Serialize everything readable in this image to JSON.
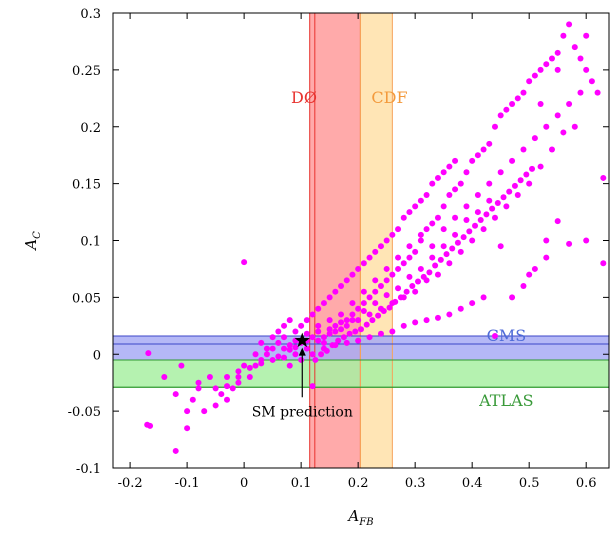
{
  "chart_data": {
    "type": "scatter",
    "xlabel_main": "A",
    "xlabel_sub": "FB",
    "ylabel_main": "A",
    "ylabel_sub": "C",
    "xlim": [
      -0.23,
      0.64
    ],
    "ylim": [
      -0.1,
      0.3
    ],
    "x_ticks": [
      -0.2,
      -0.1,
      0,
      0.1,
      0.2,
      0.3,
      0.4,
      0.5,
      0.6
    ],
    "x_tick_labels": [
      "-0.2",
      "-0.1",
      "0",
      "0.1",
      "0.2",
      "0.3",
      "0.4",
      "0.5",
      "0.6"
    ],
    "y_ticks": [
      -0.1,
      -0.05,
      0,
      0.05,
      0.1,
      0.15,
      0.2,
      0.25,
      0.3
    ],
    "y_tick_labels": [
      "-0.1",
      "-0.05",
      "0",
      "0.05",
      "0.1",
      "0.15",
      "0.2",
      "0.25",
      "0.3"
    ],
    "grid": false,
    "bands": [
      {
        "name": "DØ",
        "orientation": "vertical",
        "range": [
          0.115,
          0.204
        ],
        "center": 0.124,
        "fill": "#ff9b9b",
        "edge": "#e8332f",
        "label_color": "#e8332f",
        "label_at": [
          0.105,
          0.226
        ]
      },
      {
        "name": "CDF",
        "orientation": "vertical",
        "range": [
          0.204,
          0.26
        ],
        "center": 0.204,
        "fill": "#ffe0a8",
        "edge": "#f6a35a",
        "label_color": "#f39a3c",
        "label_at": [
          0.255,
          0.226
        ]
      },
      {
        "name": "CMS",
        "orientation": "horizontal",
        "range": [
          -0.005,
          0.016
        ],
        "center": 0.009,
        "fill": "#a8abf5",
        "edge": "#3c46c8",
        "label_color": "#4f6bd8",
        "label_at": [
          0.46,
          0.017
        ]
      },
      {
        "name": "ATLAS",
        "orientation": "horizontal",
        "range": [
          -0.029,
          -0.005
        ],
        "center": -0.029,
        "fill": "#a8f0a2",
        "edge": "#2f9a2f",
        "label_color": "#3a9a3a",
        "label_at": [
          0.46,
          -0.04
        ]
      }
    ],
    "sm_prediction": {
      "label": "SM prediction",
      "x": 0.102,
      "y": 0.012,
      "label_at": [
        0.102,
        -0.051
      ]
    },
    "series": [
      {
        "marker": "circle",
        "color": "#ff00ff",
        "points": [
          [
            -0.17,
            -0.062
          ],
          [
            -0.165,
            -0.063
          ],
          [
            -0.168,
            0.001
          ],
          [
            -0.14,
            -0.02
          ],
          [
            -0.11,
            -0.01
          ],
          [
            -0.12,
            -0.035
          ],
          [
            -0.1,
            -0.05
          ],
          [
            -0.12,
            -0.085
          ],
          [
            -0.1,
            -0.065
          ],
          [
            -0.09,
            -0.04
          ],
          [
            -0.08,
            -0.03
          ],
          [
            -0.07,
            -0.05
          ],
          [
            -0.06,
            -0.02
          ],
          [
            -0.05,
            -0.03
          ],
          [
            -0.04,
            -0.035
          ],
          [
            -0.03,
            -0.04
          ],
          [
            -0.02,
            -0.03
          ],
          [
            -0.05,
            -0.045
          ],
          [
            0.0,
            0.081
          ],
          [
            -0.01,
            -0.02
          ],
          [
            -0.08,
            -0.025
          ],
          [
            -0.03,
            -0.02
          ],
          [
            -0.01,
            -0.015
          ],
          [
            0.0,
            -0.01
          ],
          [
            0.01,
            -0.02
          ],
          [
            0.02,
            -0.01
          ],
          [
            0.03,
            -0.005
          ],
          [
            0.04,
            0.0
          ],
          [
            0.05,
            0.005
          ],
          [
            0.06,
            0.01
          ],
          [
            0.07,
            0.015
          ],
          [
            0.08,
            0.008
          ],
          [
            0.09,
            0.006
          ],
          [
            0.1,
            0.01
          ],
          [
            0.11,
            0.012
          ],
          [
            0.12,
            0.015
          ],
          [
            0.13,
            0.02
          ],
          [
            0.14,
            0.01
          ],
          [
            0.15,
            0.022
          ],
          [
            0.16,
            0.025
          ],
          [
            0.17,
            0.028
          ],
          [
            0.18,
            0.03
          ],
          [
            0.19,
            0.035
          ],
          [
            0.2,
            0.04
          ],
          [
            0.21,
            0.045
          ],
          [
            0.22,
            0.05
          ],
          [
            0.23,
            0.055
          ],
          [
            0.24,
            0.06
          ],
          [
            0.25,
            0.065
          ],
          [
            0.26,
            0.07
          ],
          [
            0.27,
            0.075
          ],
          [
            0.28,
            0.08
          ],
          [
            0.29,
            0.085
          ],
          [
            0.3,
            0.09
          ],
          [
            0.31,
            0.1
          ],
          [
            0.32,
            0.11
          ],
          [
            0.33,
            0.115
          ],
          [
            0.34,
            0.12
          ],
          [
            0.35,
            0.13
          ],
          [
            0.36,
            0.14
          ],
          [
            0.37,
            0.145
          ],
          [
            0.38,
            0.15
          ],
          [
            0.39,
            0.16
          ],
          [
            0.4,
            0.17
          ],
          [
            0.41,
            0.175
          ],
          [
            0.42,
            0.18
          ],
          [
            0.43,
            0.185
          ],
          [
            0.44,
            0.2
          ],
          [
            0.45,
            0.21
          ],
          [
            0.46,
            0.215
          ],
          [
            0.47,
            0.22
          ],
          [
            0.48,
            0.225
          ],
          [
            0.49,
            0.23
          ],
          [
            0.5,
            0.24
          ],
          [
            0.51,
            0.245
          ],
          [
            0.52,
            0.25
          ],
          [
            0.53,
            0.255
          ],
          [
            0.54,
            0.26
          ],
          [
            0.55,
            0.265
          ],
          [
            0.56,
            0.28
          ],
          [
            0.57,
            0.29
          ],
          [
            0.58,
            0.27
          ],
          [
            0.59,
            0.26
          ],
          [
            0.6,
            0.25
          ],
          [
            0.61,
            0.24
          ],
          [
            0.62,
            0.23
          ],
          [
            0.63,
            0.155
          ],
          [
            0.63,
            0.08
          ],
          [
            0.6,
            0.1
          ],
          [
            0.58,
            0.2
          ],
          [
            0.56,
            0.195
          ],
          [
            0.54,
            0.18
          ],
          [
            0.52,
            0.165
          ],
          [
            0.5,
            0.15
          ],
          [
            0.48,
            0.14
          ],
          [
            0.46,
            0.13
          ],
          [
            0.44,
            0.12
          ],
          [
            0.42,
            0.11
          ],
          [
            0.4,
            0.1
          ],
          [
            0.38,
            0.09
          ],
          [
            0.36,
            0.08
          ],
          [
            0.34,
            0.07
          ],
          [
            0.32,
            0.065
          ],
          [
            0.3,
            0.055
          ],
          [
            0.28,
            0.05
          ],
          [
            0.26,
            0.045
          ],
          [
            0.24,
            0.04
          ],
          [
            0.22,
            0.035
          ],
          [
            0.2,
            0.03
          ],
          [
            0.18,
            0.025
          ],
          [
            0.16,
            0.02
          ],
          [
            0.14,
            0.015
          ],
          [
            0.44,
            0.016
          ],
          [
            0.47,
            0.05
          ],
          [
            0.55,
            0.117
          ],
          [
            0.57,
            0.097
          ],
          [
            0.49,
            0.06
          ],
          [
            0.53,
            0.085
          ],
          [
            0.51,
            0.075
          ],
          [
            0.45,
            0.095
          ],
          [
            0.43,
            0.135
          ],
          [
            0.41,
            0.125
          ],
          [
            0.39,
            0.118
          ],
          [
            0.37,
            0.105
          ],
          [
            0.35,
            0.095
          ],
          [
            0.33,
            0.085
          ],
          [
            0.31,
            0.075
          ],
          [
            0.29,
            0.068
          ],
          [
            0.27,
            0.058
          ],
          [
            0.25,
            0.052
          ],
          [
            0.23,
            0.045
          ],
          [
            0.21,
            0.038
          ],
          [
            0.19,
            0.03
          ],
          [
            0.17,
            0.022
          ],
          [
            0.15,
            0.018
          ],
          [
            0.13,
            0.012
          ],
          [
            0.11,
            0.005
          ],
          [
            0.09,
            0.0
          ],
          [
            0.07,
            -0.003
          ],
          [
            0.05,
            -0.005
          ],
          [
            0.03,
            -0.008
          ],
          [
            0.01,
            -0.012
          ],
          [
            -0.01,
            -0.025
          ],
          [
            -0.03,
            -0.028
          ],
          [
            0.12,
            -0.028
          ],
          [
            0.125,
            -0.005
          ],
          [
            0.135,
            0.0
          ],
          [
            0.145,
            0.003
          ],
          [
            0.155,
            0.008
          ],
          [
            0.165,
            0.012
          ],
          [
            0.175,
            0.015
          ],
          [
            0.185,
            0.018
          ],
          [
            0.195,
            0.02
          ],
          [
            0.205,
            0.022
          ],
          [
            0.215,
            0.026
          ],
          [
            0.225,
            0.03
          ],
          [
            0.235,
            0.034
          ],
          [
            0.245,
            0.038
          ],
          [
            0.255,
            0.041
          ],
          [
            0.265,
            0.046
          ],
          [
            0.275,
            0.05
          ],
          [
            0.285,
            0.055
          ],
          [
            0.295,
            0.06
          ],
          [
            0.305,
            0.064
          ],
          [
            0.315,
            0.068
          ],
          [
            0.325,
            0.072
          ],
          [
            0.335,
            0.078
          ],
          [
            0.345,
            0.083
          ],
          [
            0.355,
            0.088
          ],
          [
            0.365,
            0.093
          ],
          [
            0.375,
            0.098
          ],
          [
            0.385,
            0.103
          ],
          [
            0.395,
            0.108
          ],
          [
            0.405,
            0.113
          ],
          [
            0.415,
            0.118
          ],
          [
            0.425,
            0.123
          ],
          [
            0.435,
            0.128
          ],
          [
            0.445,
            0.133
          ],
          [
            0.455,
            0.138
          ],
          [
            0.465,
            0.143
          ],
          [
            0.475,
            0.148
          ],
          [
            0.485,
            0.153
          ],
          [
            0.495,
            0.158
          ],
          [
            0.505,
            0.163
          ],
          [
            0.06,
            0.02
          ],
          [
            0.07,
            0.025
          ],
          [
            0.08,
            0.03
          ],
          [
            0.09,
            0.02
          ],
          [
            0.1,
            0.025
          ],
          [
            0.11,
            0.03
          ],
          [
            0.12,
            0.035
          ],
          [
            0.13,
            0.04
          ],
          [
            0.14,
            0.045
          ],
          [
            0.15,
            0.05
          ],
          [
            0.16,
            0.055
          ],
          [
            0.17,
            0.06
          ],
          [
            0.18,
            0.065
          ],
          [
            0.19,
            0.07
          ],
          [
            0.2,
            0.075
          ],
          [
            0.21,
            0.08
          ],
          [
            0.22,
            0.085
          ],
          [
            0.23,
            0.09
          ],
          [
            0.24,
            0.095
          ],
          [
            0.25,
            0.1
          ],
          [
            0.26,
            0.105
          ],
          [
            0.27,
            0.11
          ],
          [
            0.28,
            0.12
          ],
          [
            0.29,
            0.125
          ],
          [
            0.3,
            0.13
          ],
          [
            0.31,
            0.135
          ],
          [
            0.32,
            0.14
          ],
          [
            0.33,
            0.15
          ],
          [
            0.34,
            0.155
          ],
          [
            0.35,
            0.16
          ],
          [
            0.36,
            0.165
          ],
          [
            0.37,
            0.17
          ],
          [
            0.08,
            -0.01
          ],
          [
            0.1,
            -0.005
          ],
          [
            0.12,
            0.0
          ],
          [
            0.14,
            0.005
          ],
          [
            0.16,
            0.008
          ],
          [
            0.18,
            0.01
          ],
          [
            0.2,
            0.012
          ],
          [
            0.22,
            0.015
          ],
          [
            0.24,
            0.018
          ],
          [
            0.26,
            0.02
          ],
          [
            0.28,
            0.025
          ],
          [
            0.3,
            0.028
          ],
          [
            0.32,
            0.03
          ],
          [
            0.34,
            0.032
          ],
          [
            0.36,
            0.035
          ],
          [
            0.38,
            0.04
          ],
          [
            0.4,
            0.045
          ],
          [
            0.42,
            0.05
          ],
          [
            0.5,
            0.07
          ],
          [
            0.53,
            0.1
          ],
          [
            0.02,
            0.0
          ],
          [
            0.04,
            0.005
          ],
          [
            0.06,
            -0.002
          ],
          [
            0.08,
            0.004
          ],
          [
            0.03,
            0.01
          ],
          [
            0.05,
            0.015
          ],
          [
            0.07,
            0.005
          ],
          [
            0.09,
            0.012
          ],
          [
            0.11,
            0.018
          ],
          [
            0.13,
            0.025
          ],
          [
            0.15,
            0.03
          ],
          [
            0.17,
            0.035
          ],
          [
            0.19,
            0.045
          ],
          [
            0.21,
            0.055
          ],
          [
            0.23,
            0.065
          ],
          [
            0.25,
            0.075
          ],
          [
            0.27,
            0.085
          ],
          [
            0.29,
            0.095
          ],
          [
            0.31,
            0.105
          ],
          [
            0.33,
            0.095
          ],
          [
            0.35,
            0.11
          ],
          [
            0.37,
            0.12
          ],
          [
            0.39,
            0.13
          ],
          [
            0.41,
            0.14
          ],
          [
            0.43,
            0.15
          ],
          [
            0.45,
            0.16
          ],
          [
            0.47,
            0.17
          ],
          [
            0.49,
            0.18
          ],
          [
            0.51,
            0.19
          ],
          [
            0.53,
            0.2
          ],
          [
            0.55,
            0.21
          ],
          [
            0.57,
            0.22
          ],
          [
            0.59,
            0.23
          ],
          [
            0.6,
            0.28
          ],
          [
            0.55,
            0.25
          ],
          [
            0.52,
            0.22
          ]
        ]
      }
    ]
  }
}
